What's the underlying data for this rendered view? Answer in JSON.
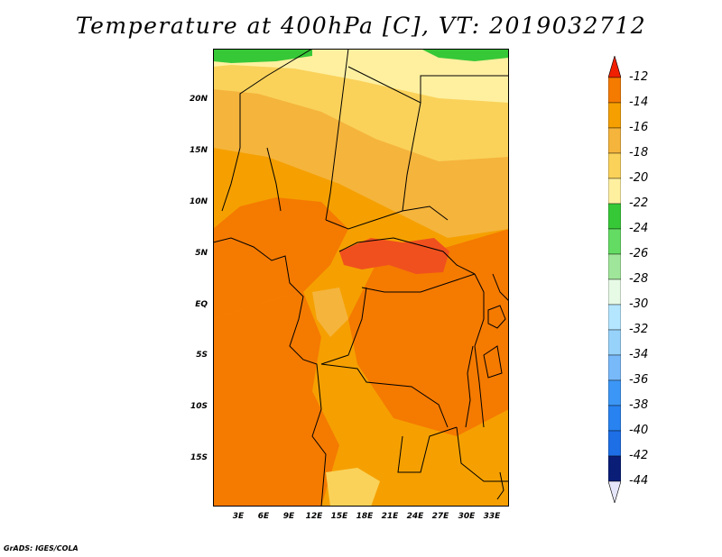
{
  "title": "Temperature at 400hPa [C], VT: 2019032712",
  "footer": "GrADS: IGES/COLA",
  "map": {
    "lat_ticks": [
      "20N",
      "15N",
      "10N",
      "5N",
      "EQ",
      "5S",
      "10S",
      "15S"
    ],
    "lon_ticks": [
      "3E",
      "6E",
      "9E",
      "12E",
      "15E",
      "18E",
      "21E",
      "24E",
      "27E",
      "30E",
      "33E"
    ]
  },
  "colorbar": {
    "labels": [
      "-12",
      "-14",
      "-16",
      "-18",
      "-20",
      "-22",
      "-24",
      "-26",
      "-28",
      "-30",
      "-32",
      "-34",
      "-36",
      "-38",
      "-40",
      "-42",
      "-44"
    ],
    "colors": [
      "#f0501e",
      "#f57a00",
      "#f5a000",
      "#f5b43c",
      "#fad25a",
      "#fff0a0",
      "#37c837",
      "#64dc64",
      "#a0e69a",
      "#e6fae6",
      "#b4e6ff",
      "#96d2fa",
      "#78b9fa",
      "#3c96f5",
      "#2882f0",
      "#1e6ee6",
      "#0a1e78"
    ],
    "top_arrow_color": "#f02000",
    "bottom_arrow_color": "#e6e6fa"
  }
}
